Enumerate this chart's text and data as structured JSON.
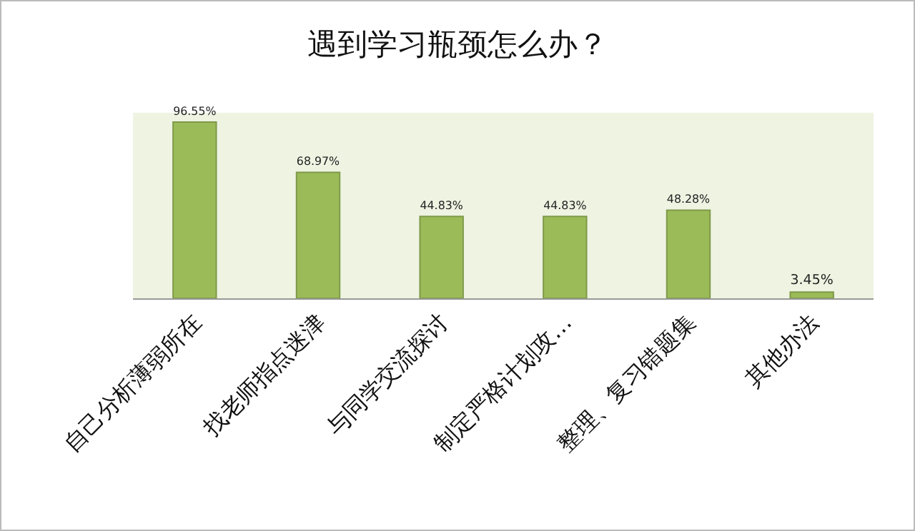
{
  "chart_data": {
    "type": "bar",
    "title": "遇到学习瓶颈怎么办？",
    "categories": [
      "自己分析薄弱所在",
      "找老师指点迷津",
      "与同学交流探讨",
      "制定严格计划攻…",
      "整理、复习错题集",
      "其他办法"
    ],
    "values": [
      96.55,
      68.97,
      44.83,
      44.83,
      48.28,
      3.45
    ],
    "value_labels": [
      "96.55%",
      "68.97%",
      "44.83%",
      "44.83%",
      "48.28%",
      "3.45%"
    ],
    "color": "#9bbb59"
  }
}
